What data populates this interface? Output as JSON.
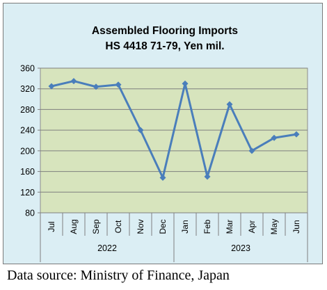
{
  "chart_data": {
    "type": "line",
    "title": "Assembled Flooring Imports",
    "subtitle": "HS 4418 71-79, Yen mil.",
    "categories": [
      "Jul",
      "Aug",
      "Sep",
      "Oct",
      "Nov",
      "Dec",
      "Jan",
      "Feb",
      "Mar",
      "Apr",
      "May",
      "Jun"
    ],
    "groups": [
      {
        "label": "2022",
        "span": 6
      },
      {
        "label": "2023",
        "span": 6
      }
    ],
    "series": [
      {
        "values": [
          325,
          335,
          324,
          328,
          240,
          148,
          330,
          150,
          290,
          200,
          225,
          232
        ]
      }
    ],
    "ylim": [
      80,
      360
    ],
    "yticks": [
      80,
      120,
      160,
      200,
      240,
      280,
      320,
      360
    ],
    "grid": true,
    "line_color": "#4a7ebb",
    "plot_background": "#d7e4bd",
    "frame_background": "#dbeef4"
  },
  "source": "Data source: Ministry of Finance, Japan"
}
